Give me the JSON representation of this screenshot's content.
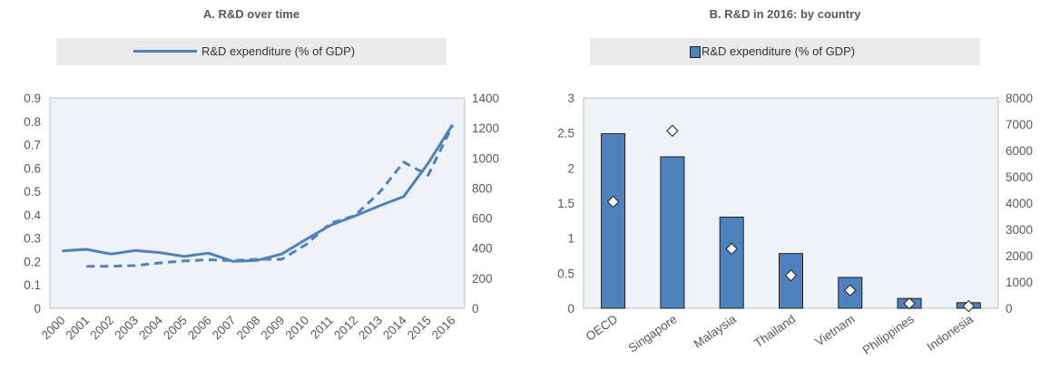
{
  "panels": {
    "a": {
      "title": "A. R&D over time",
      "legend": "R&D expenditure (% of GDP)"
    },
    "b": {
      "title": "B. R&D in 2016: by country",
      "legend": "R&D expenditure (% of GDP)"
    }
  },
  "colors": {
    "series": "#4f81bd",
    "bar_fill": "#4f81bd",
    "bar_stroke": "#1f1f1f",
    "legend_bg": "#eaeaea",
    "plot_bg": "#eff2f7",
    "marker_fill": "#ffffff"
  },
  "chart_data": [
    {
      "type": "line",
      "title": "A. R&D over time",
      "x": [
        "2000",
        "2001",
        "2002",
        "2003",
        "2004",
        "2005",
        "2006",
        "2007",
        "2008",
        "2009",
        "2010",
        "2011",
        "2012",
        "2013",
        "2014",
        "2015",
        "2016"
      ],
      "ylim": [
        0,
        0.9
      ],
      "yticks": [
        "0",
        "0.1",
        "0.2",
        "0.3",
        "0.4",
        "0.5",
        "0.6",
        "0.7",
        "0.8",
        "0.9"
      ],
      "y2lim": [
        0,
        1400
      ],
      "y2ticks": [
        "0",
        "200",
        "400",
        "600",
        "800",
        "1000",
        "1200",
        "1400"
      ],
      "grid": false,
      "legend": "top",
      "series": [
        {
          "name": "R&D expenditure (% of GDP)",
          "axis": "left",
          "style": "solid",
          "values": [
            0.245,
            0.252,
            0.232,
            0.247,
            0.238,
            0.222,
            0.236,
            0.201,
            0.205,
            0.232,
            0.295,
            0.355,
            0.395,
            0.438,
            0.478,
            0.62,
            0.785
          ]
        },
        {
          "axis": "right",
          "style": "dashed",
          "values": [
            null,
            278,
            280,
            284,
            302,
            315,
            323,
            318,
            326,
            326,
            424,
            566,
            617,
            769,
            973,
            886,
            1215
          ]
        }
      ]
    },
    {
      "type": "bar",
      "title": "B. R&D in 2016: by country",
      "categories": [
        "OECD",
        "Singapore",
        "Malaysia",
        "Thailand",
        "Vietnam",
        "Philippines",
        "Indonesia"
      ],
      "ylim": [
        0,
        3
      ],
      "yticks": [
        "0",
        "0.5",
        "1",
        "1.5",
        "2",
        "2.5",
        "3"
      ],
      "y2lim": [
        0,
        8000
      ],
      "y2ticks": [
        "0",
        "1000",
        "2000",
        "3000",
        "4000",
        "5000",
        "6000",
        "7000",
        "8000"
      ],
      "grid": false,
      "legend": "top",
      "series": [
        {
          "name": "R&D expenditure (% of GDP)",
          "axis": "left",
          "kind": "bar",
          "values": [
            2.49,
            2.16,
            1.3,
            0.78,
            0.44,
            0.14,
            0.08
          ]
        },
        {
          "axis": "right",
          "kind": "marker",
          "values": [
            4050,
            6750,
            2260,
            1250,
            680,
            180,
            80
          ]
        }
      ]
    }
  ]
}
